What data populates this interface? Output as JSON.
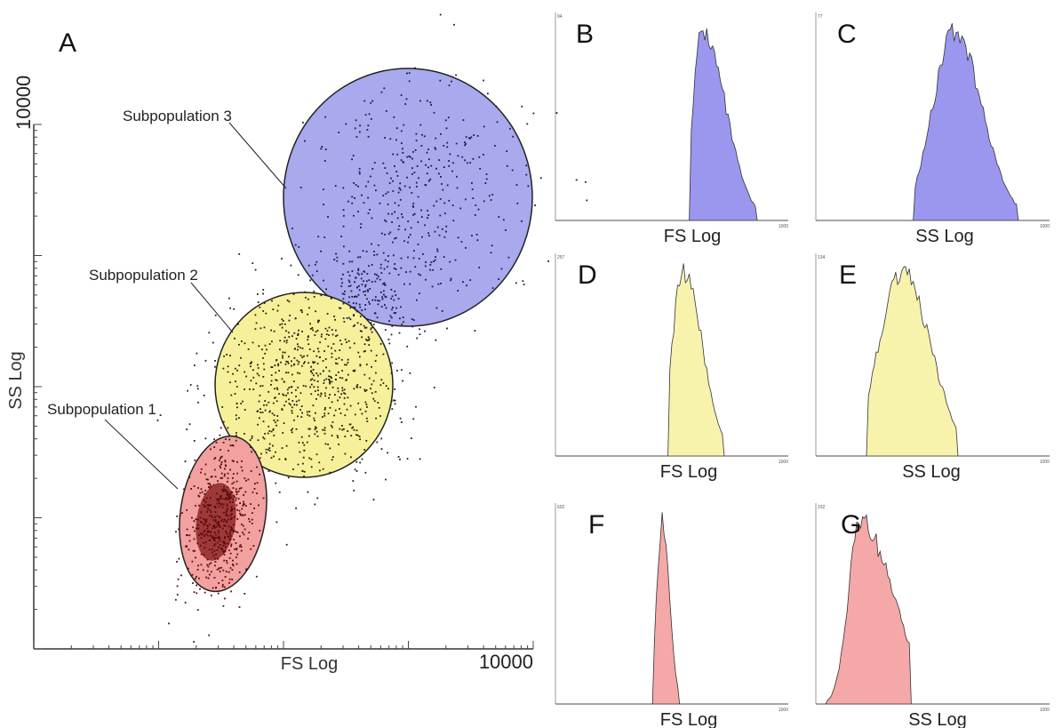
{
  "scatter": {
    "letter": "A",
    "xlabel": "FS Log",
    "ylabel": "SS Log",
    "xmax_label": "10000",
    "ymax_label": "10000",
    "populations": [
      {
        "label": "Subpopulation 1",
        "fill": "#f2a0a0",
        "dot": "#5a0b0b"
      },
      {
        "label": "Subpopulation 2",
        "fill": "#f7f09a",
        "dot": "#222211"
      },
      {
        "label": "Subpopulation 3",
        "fill": "#a9a9ee",
        "dot": "#1a1a4a"
      }
    ]
  },
  "chart_data": [
    {
      "type": "area",
      "panel": "B",
      "xlabel": "FS Log",
      "ymax": "94",
      "xmax": "1000",
      "color": "#9b97ee"
    },
    {
      "type": "area",
      "panel": "C",
      "xlabel": "SS Log",
      "ymax": "77",
      "xmax": "1000",
      "color": "#9b97ee"
    },
    {
      "type": "area",
      "panel": "D",
      "xlabel": "FS Log",
      "ymax": "257",
      "xmax": "1000",
      "color": "#f7f3ad"
    },
    {
      "type": "area",
      "panel": "E",
      "xlabel": "SS Log",
      "ymax": "134",
      "xmax": "1000",
      "color": "#f7f3ad"
    },
    {
      "type": "area",
      "panel": "F",
      "xlabel": "FS Log",
      "ymax": "602",
      "xmax": "1000",
      "color": "#f5a8a8"
    },
    {
      "type": "area",
      "panel": "G",
      "xlabel": "SS Log",
      "ymax": "232",
      "xmax": "1000",
      "color": "#f5a8a8"
    }
  ]
}
